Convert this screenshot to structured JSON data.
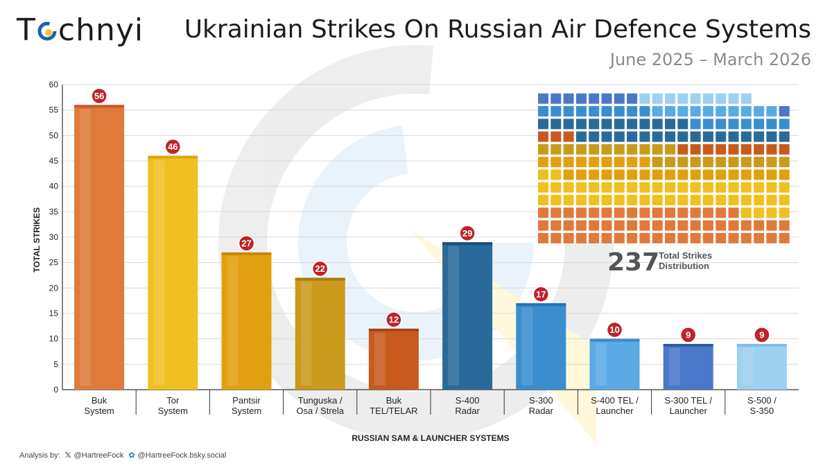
{
  "brand": {
    "logo_text": "Technyi"
  },
  "header": {
    "title": "Ukrainian Strikes On Russian Air Defence Systems",
    "subtitle": "June 2025 – March 2026"
  },
  "footer": {
    "analysis_label": "Analysis by:",
    "x_handle": "@HartreeFock",
    "bsky_handle": "@HartreeFock.bsky.social"
  },
  "waffle": {
    "total": "237",
    "label_line1": "Total Strikes",
    "label_line2": "Distribution"
  },
  "chart_data": {
    "type": "bar",
    "xlabel": "RUSSIAN SAM & LAUNCHER SYSTEMS",
    "ylabel": "TOTAL STRIKES",
    "ylim": [
      0,
      60
    ],
    "yticks": [
      0,
      5,
      10,
      15,
      20,
      25,
      30,
      35,
      40,
      45,
      50,
      55,
      60
    ],
    "grid": true,
    "categories": [
      [
        "Buk",
        "System"
      ],
      [
        "Tor",
        "System"
      ],
      [
        "Pantsir",
        "System"
      ],
      [
        "Tunguska /",
        "Osa / Strela"
      ],
      [
        "Buk",
        "TEL/TELAR"
      ],
      [
        "S-400",
        "Radar"
      ],
      [
        "S-300",
        "Radar"
      ],
      [
        "S-400 TEL /",
        "Launcher"
      ],
      [
        "S-300 TEL /",
        "Launcher"
      ],
      [
        "S-500 /",
        "S-350"
      ]
    ],
    "values": [
      56,
      46,
      27,
      22,
      12,
      29,
      17,
      10,
      9,
      9
    ],
    "colors": [
      "#e07a3c",
      "#f0c020",
      "#e2a010",
      "#c99a1c",
      "#c85a1e",
      "#2a6a9a",
      "#3a8ed0",
      "#5aaae6",
      "#4a78c8",
      "#9ed0f0"
    ],
    "top_colors": [
      "#c8582a",
      "#d9a810",
      "#c88800",
      "#a87c10",
      "#a84418",
      "#1a4e78",
      "#2a72b4",
      "#3a8ad0",
      "#3058a8",
      "#80bce6"
    ],
    "badge_color": "#c0222a"
  },
  "colors": {
    "grid": "#d8d8d8",
    "axis": "#333333"
  }
}
